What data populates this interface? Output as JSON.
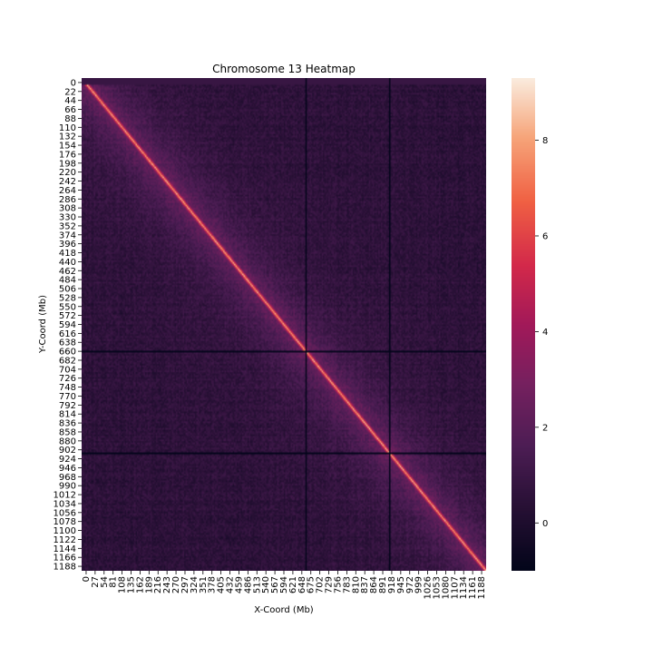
{
  "chart_data": {
    "type": "heatmap",
    "title": "Chromosome 13 Heatmap",
    "xlabel": "X-Coord (Mb)",
    "ylabel": "Y-Coord (Mb)",
    "x_ticks": [
      "0",
      "27",
      "54",
      "81",
      "108",
      "135",
      "162",
      "189",
      "216",
      "243",
      "270",
      "297",
      "324",
      "351",
      "378",
      "405",
      "432",
      "459",
      "486",
      "513",
      "540",
      "567",
      "594",
      "621",
      "648",
      "675",
      "702",
      "729",
      "756",
      "783",
      "810",
      "837",
      "864",
      "891",
      "918",
      "945",
      "972",
      "999",
      "1026",
      "1053",
      "1080",
      "1107",
      "1134",
      "1161",
      "1188"
    ],
    "y_ticks": [
      "0",
      "22",
      "44",
      "66",
      "88",
      "110",
      "132",
      "154",
      "176",
      "198",
      "220",
      "242",
      "264",
      "286",
      "308",
      "330",
      "352",
      "374",
      "396",
      "418",
      "440",
      "462",
      "484",
      "506",
      "528",
      "550",
      "572",
      "594",
      "616",
      "638",
      "660",
      "682",
      "704",
      "726",
      "748",
      "770",
      "792",
      "814",
      "836",
      "858",
      "880",
      "902",
      "924",
      "946",
      "968",
      "990",
      "1012",
      "1034",
      "1056",
      "1078",
      "1100",
      "1122",
      "1144",
      "1166",
      "1188"
    ],
    "coord_range": [
      0,
      1200
    ],
    "colorbar": {
      "ticks": [
        "0",
        "2",
        "4",
        "6",
        "8"
      ],
      "tick_values": [
        0,
        2,
        4,
        6,
        8
      ],
      "range": [
        -1,
        9.3
      ],
      "colormap": "rocket"
    },
    "features": {
      "diagonal_peak_value": 8,
      "background_value": 0.5,
      "near_diagonal_value": 2,
      "empty_band_rows_end": 15,
      "gap_lines_at": [
        663,
        912
      ],
      "gap_value": -1
    }
  }
}
